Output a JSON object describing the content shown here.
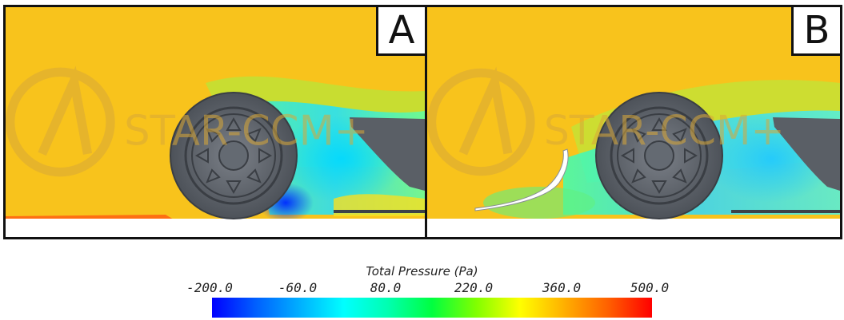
{
  "panels": [
    {
      "id": "A",
      "label": "A",
      "watermark": "STAR-CCM+"
    },
    {
      "id": "B",
      "label": "B",
      "watermark": "STAR-CCM+"
    }
  ],
  "colorbar": {
    "title": "Total Pressure (Pa)",
    "ticks": [
      "-200.0",
      "-60.0",
      "80.0",
      "220.0",
      "360.0",
      "500.0"
    ],
    "min": -200.0,
    "max": 500.0
  },
  "colors": {
    "freestream": "#f8c31c",
    "tire": "#5a5f66",
    "ground": "#ffffff",
    "border": "#111111"
  }
}
